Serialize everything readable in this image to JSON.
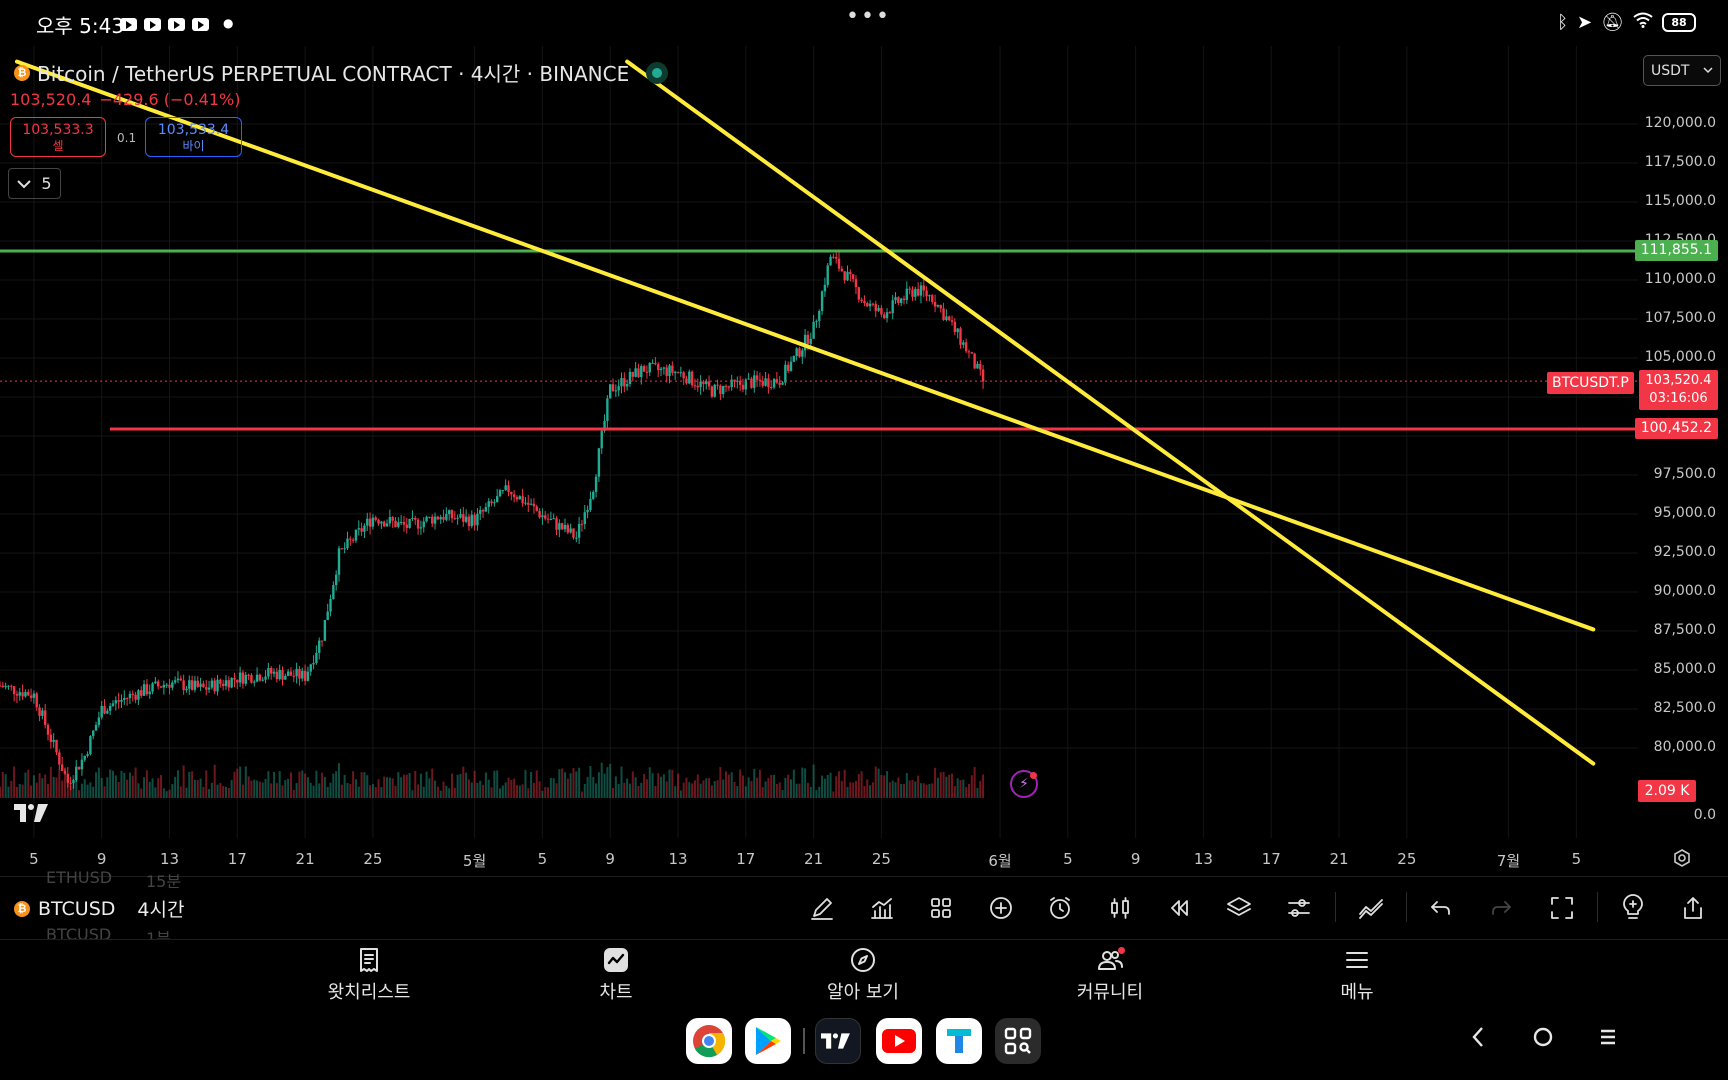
{
  "status_bar": {
    "time": "오후 5:43",
    "battery": "88"
  },
  "header": {
    "symbol_title": "Bitcoin / TetherUS PERPETUAL CONTRACT · 4시간 · BINANCE",
    "btc_glyph": "₿",
    "last_price": "103,520.4",
    "change": "−429.6 (−0.41%)",
    "sell_price": "103,533.3",
    "sell_label": "셀",
    "spread": "0.1",
    "buy_price": "103,533.4",
    "buy_label": "바이",
    "indicator_count": "5",
    "currency": "USDT"
  },
  "colors": {
    "up": "#22ab94",
    "down": "#f23645",
    "trendline": "#ffeb3b",
    "resistance": "#4caf50",
    "support": "#f23645"
  },
  "price_axis": {
    "ticks": [
      "120,000.0",
      "117,500.0",
      "115,000.0",
      "112,500.0",
      "110,000.0",
      "107,500.0",
      "105,000.0",
      "97,500.0",
      "95,000.0",
      "92,500.0",
      "90,000.0",
      "87,500.0",
      "85,000.0",
      "82,500.0",
      "80,000.0",
      "0.0"
    ],
    "resistance_label": "111,855.1",
    "support_label": "100,452.2",
    "current_price": "103,520.4",
    "countdown": "03:16:06",
    "symbol_tag": "BTCUSDT.P",
    "volume_label": "2.09 K"
  },
  "time_axis": {
    "labels": [
      "5",
      "9",
      "13",
      "17",
      "21",
      "25",
      "5월",
      "5",
      "9",
      "13",
      "17",
      "21",
      "25",
      "6월",
      "5",
      "9",
      "13",
      "17",
      "21",
      "25",
      "7월",
      "5"
    ]
  },
  "toolbar": {
    "symbol": "BTCUSD",
    "interval": "4시간",
    "ghost_prev_symbol": "ETHUSD",
    "ghost_prev_interval": "15분",
    "ghost_next_symbol": "BTCUSD",
    "ghost_next_interval": "1분",
    "tools": [
      "draw-icon",
      "indicators-icon",
      "templates-icon",
      "add-icon",
      "alert-icon",
      "candle-type-icon",
      "replay-icon",
      "layers-icon",
      "settings-icon",
      "trend-icon",
      "undo-icon",
      "redo-icon",
      "fullscreen-icon",
      "idea-icon",
      "share-icon"
    ]
  },
  "bottom_nav": {
    "items": [
      {
        "label": "왓치리스트",
        "icon": "watchlist-icon"
      },
      {
        "label": "차트",
        "icon": "chart-icon"
      },
      {
        "label": "알아 보기",
        "icon": "explore-icon"
      },
      {
        "label": "커뮤니티",
        "icon": "community-icon"
      },
      {
        "label": "메뉴",
        "icon": "menu-icon"
      }
    ]
  },
  "dock": {
    "apps": [
      "chrome-icon",
      "play-store-icon",
      "tradingview-icon",
      "youtube-icon",
      "t-app-icon",
      "qr-scanner-icon"
    ]
  },
  "chart_data": {
    "type": "candlestick",
    "symbol": "BTCUSDT.P",
    "interval": "4시간",
    "exchange": "BINANCE",
    "y_unit": "USDT",
    "ylim": [
      78500,
      122000
    ],
    "x_range": [
      "2025-04-03",
      "2025-07-06"
    ],
    "x_ticks": [
      "2025-04-05",
      "2025-04-09",
      "2025-04-13",
      "2025-04-17",
      "2025-04-21",
      "2025-04-25",
      "2025-05-01",
      "2025-05-05",
      "2025-05-09",
      "2025-05-13",
      "2025-05-17",
      "2025-05-21",
      "2025-05-25",
      "2025-06-01",
      "2025-06-05",
      "2025-06-09",
      "2025-06-13",
      "2025-06-17",
      "2025-06-21",
      "2025-06-25",
      "2025-07-01",
      "2025-07-05"
    ],
    "close_path": [
      [
        "2025-04-03",
        84000
      ],
      [
        "2025-04-05",
        83400
      ],
      [
        "2025-04-07",
        77800
      ],
      [
        "2025-04-08",
        79500
      ],
      [
        "2025-04-09",
        82500
      ],
      [
        "2025-04-11",
        83500
      ],
      [
        "2025-04-13",
        84200
      ],
      [
        "2025-04-15",
        83800
      ],
      [
        "2025-04-17",
        84500
      ],
      [
        "2025-04-19",
        84800
      ],
      [
        "2025-04-21",
        84600
      ],
      [
        "2025-04-22",
        87200
      ],
      [
        "2025-04-23",
        92400
      ],
      [
        "2025-04-25",
        94800
      ],
      [
        "2025-04-27",
        94200
      ],
      [
        "2025-04-29",
        94900
      ],
      [
        "2025-05-01",
        94600
      ],
      [
        "2025-05-03",
        96600
      ],
      [
        "2025-05-05",
        94900
      ],
      [
        "2025-05-07",
        93500
      ],
      [
        "2025-05-08",
        96800
      ],
      [
        "2025-05-09",
        103000
      ],
      [
        "2025-05-11",
        104300
      ],
      [
        "2025-05-13",
        104100
      ],
      [
        "2025-05-15",
        102900
      ],
      [
        "2025-05-17",
        103400
      ],
      [
        "2025-05-19",
        103600
      ],
      [
        "2025-05-20",
        105200
      ],
      [
        "2025-05-21",
        106900
      ],
      [
        "2025-05-22",
        111500
      ],
      [
        "2025-05-23",
        110200
      ],
      [
        "2025-05-24",
        108600
      ],
      [
        "2025-05-25",
        107800
      ],
      [
        "2025-05-27",
        109400
      ],
      [
        "2025-05-28",
        108900
      ],
      [
        "2025-05-29",
        107300
      ],
      [
        "2025-05-30",
        105600
      ],
      [
        "2025-05-31",
        103500
      ]
    ],
    "resistance": 111855.1,
    "support": 100452.2,
    "current_price": 103520.4,
    "trendlines": [
      {
        "from": [
          "2025-04-04",
          124000
        ],
        "to": [
          "2025-07-06",
          87600
        ]
      },
      {
        "from": [
          "2025-05-10",
          124000
        ],
        "to": [
          "2025-07-06",
          79000
        ]
      }
    ],
    "volume_last": "2.09 K"
  }
}
